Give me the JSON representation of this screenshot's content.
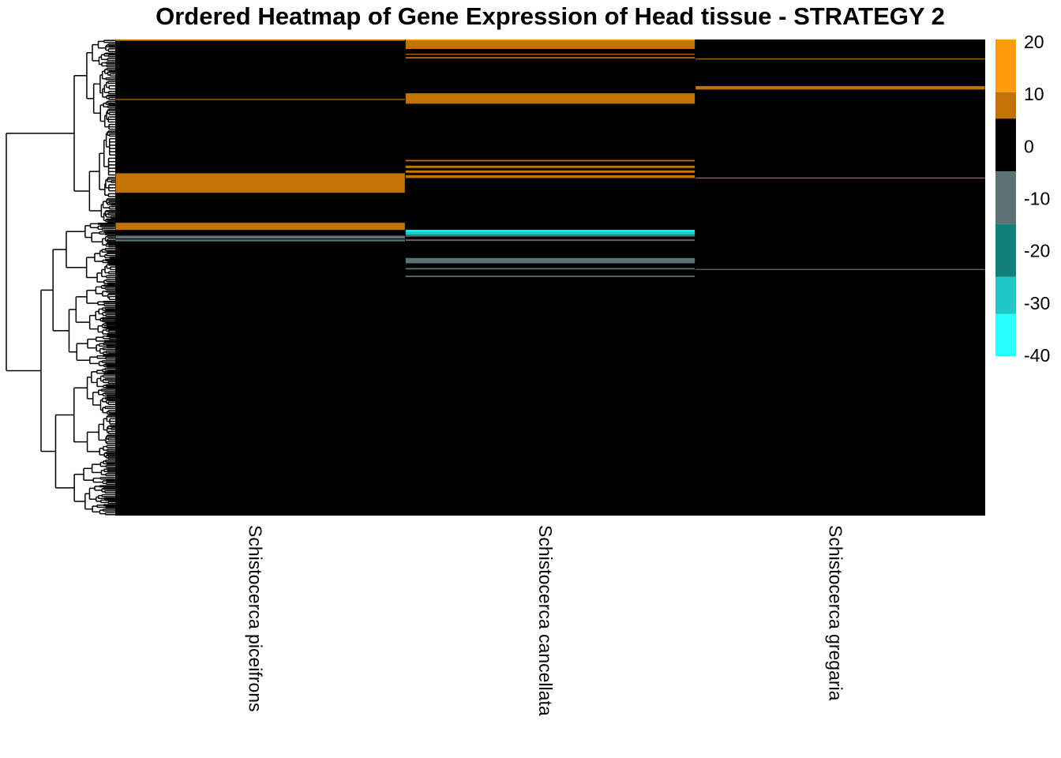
{
  "chart_data": {
    "type": "heatmap",
    "title": "Ordered Heatmap of Gene Expression of Head tissue - STRATEGY 2",
    "columns": [
      "Schistocerca piceifrons",
      "Schistocerca cancellata",
      "Schistocerca gregaria"
    ],
    "row_count": 1000,
    "default_value": 0,
    "color_scale": {
      "breaks": [
        -40,
        -30,
        -20,
        -10,
        0,
        10,
        20
      ],
      "tick_labels": [
        "20",
        "10",
        "0",
        "-10",
        "-20",
        "-30",
        "-40"
      ],
      "colors": [
        "#ffffff",
        "#ffffff",
        "#ffffff",
        "#ffffff",
        "#ffffff",
        "#ffffff"
      ],
      "bins": [
        {
          "range": [
            10,
            20
          ],
          "color": "#FF9A0C"
        },
        {
          "range": [
            5,
            10
          ],
          "color": "#C27304"
        },
        {
          "range": [
            -5,
            5
          ],
          "color": "#000000"
        },
        {
          "range": [
            -15,
            -5
          ],
          "color": "#5C7376"
        },
        {
          "range": [
            -25,
            -15
          ],
          "color": "#137F7D"
        },
        {
          "range": [
            -32,
            -25
          ],
          "color": "#1FC7C5"
        },
        {
          "range": [
            -40,
            -32
          ],
          "color": "#28FFFF"
        }
      ]
    },
    "nonzero_cells": [
      {
        "column": 0,
        "row_start": 0,
        "row_end": 3,
        "value": 8
      },
      {
        "column": 0,
        "row_start": 125,
        "row_end": 126,
        "value": 8
      },
      {
        "column": 0,
        "row_start": 281,
        "row_end": 322,
        "value": 8
      },
      {
        "column": 0,
        "row_start": 385,
        "row_end": 400,
        "value": 8
      },
      {
        "column": 0,
        "row_start": 412,
        "row_end": 418,
        "value": -10
      },
      {
        "column": 0,
        "row_start": 420,
        "row_end": 424,
        "value": -10
      },
      {
        "column": 1,
        "row_start": 0,
        "row_end": 3,
        "value": 15
      },
      {
        "column": 1,
        "row_start": 3,
        "row_end": 20,
        "value": 8
      },
      {
        "column": 1,
        "row_start": 30,
        "row_end": 32,
        "value": 8
      },
      {
        "column": 1,
        "row_start": 37,
        "row_end": 40,
        "value": 8
      },
      {
        "column": 1,
        "row_start": 113,
        "row_end": 135,
        "value": 8
      },
      {
        "column": 1,
        "row_start": 253,
        "row_end": 256,
        "value": 8
      },
      {
        "column": 1,
        "row_start": 265,
        "row_end": 270,
        "value": 8
      },
      {
        "column": 1,
        "row_start": 275,
        "row_end": 280,
        "value": 8
      },
      {
        "column": 1,
        "row_start": 285,
        "row_end": 291,
        "value": 8
      },
      {
        "column": 1,
        "row_start": 400,
        "row_end": 404,
        "value": -35
      },
      {
        "column": 1,
        "row_start": 404,
        "row_end": 410,
        "value": -30
      },
      {
        "column": 1,
        "row_start": 410,
        "row_end": 414,
        "value": -10
      },
      {
        "column": 1,
        "row_start": 420,
        "row_end": 423,
        "value": -10
      },
      {
        "column": 1,
        "row_start": 459,
        "row_end": 470,
        "value": -10
      },
      {
        "column": 1,
        "row_start": 480,
        "row_end": 483,
        "value": -10
      },
      {
        "column": 1,
        "row_start": 496,
        "row_end": 499,
        "value": -10
      },
      {
        "column": 2,
        "row_start": 40,
        "row_end": 42,
        "value": 8
      },
      {
        "column": 2,
        "row_start": 98,
        "row_end": 105,
        "value": 8
      },
      {
        "column": 2,
        "row_start": 290,
        "row_end": 292,
        "value": 8
      },
      {
        "column": 2,
        "row_start": 482,
        "row_end": 484,
        "value": -10
      }
    ],
    "row_dendrogram": true
  }
}
